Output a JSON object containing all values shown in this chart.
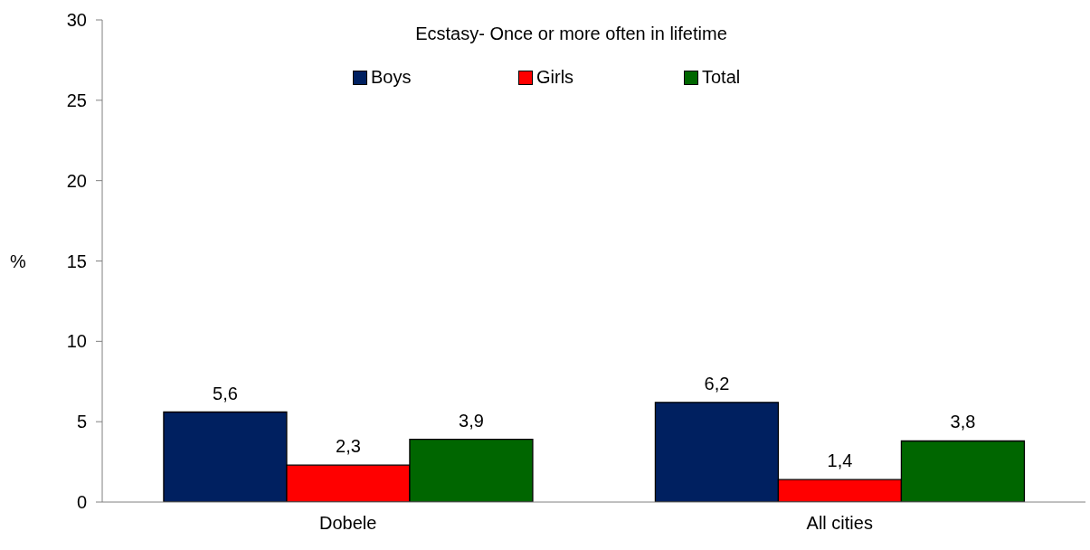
{
  "chart_data": {
    "type": "bar",
    "title": "Ecstasy- Once or more often in lifetime",
    "ylabel": "%",
    "categories": [
      "Dobele",
      "All cities"
    ],
    "series": [
      {
        "name": "Boys",
        "color": "#002060",
        "values": [
          5.6,
          6.2
        ],
        "value_labels": [
          "5,6",
          "6,2"
        ]
      },
      {
        "name": "Girls",
        "color": "#ff0000",
        "values": [
          2.3,
          1.4
        ],
        "value_labels": [
          "2,3",
          "1,4"
        ]
      },
      {
        "name": "Total",
        "color": "#006600",
        "values": [
          3.9,
          3.8
        ],
        "value_labels": [
          "3,9",
          "3,8"
        ]
      }
    ],
    "ylim": [
      0,
      30
    ],
    "yticks": [
      0,
      5,
      10,
      15,
      20,
      25,
      30
    ],
    "grid": false,
    "legend": "top"
  }
}
